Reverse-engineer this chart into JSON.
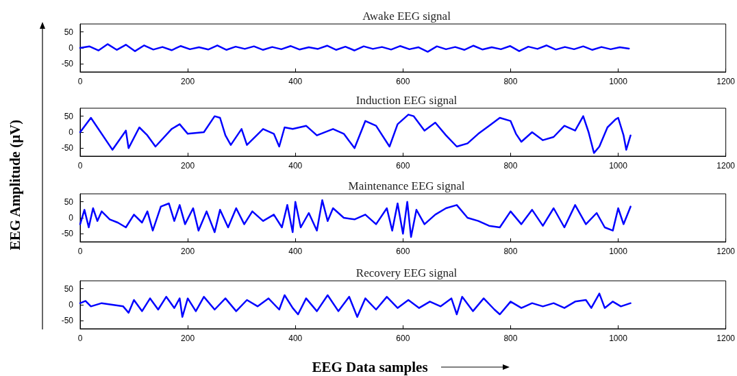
{
  "chart_data": [
    {
      "type": "line",
      "title": "Awake EEG signal",
      "ylabel": "EEG Amplitude (μV)",
      "xlim": [
        0,
        1200
      ],
      "xticks": [
        0,
        200,
        400,
        600,
        800,
        1000,
        1200
      ],
      "ylim": [
        -75,
        75
      ],
      "yticks": [
        -50,
        0,
        50
      ],
      "x": [
        0,
        17,
        34,
        51,
        68,
        85,
        102,
        119,
        136,
        153,
        170,
        187,
        204,
        221,
        238,
        255,
        272,
        289,
        306,
        323,
        340,
        357,
        374,
        391,
        408,
        425,
        442,
        459,
        476,
        493,
        510,
        527,
        544,
        561,
        578,
        595,
        612,
        629,
        646,
        663,
        680,
        697,
        714,
        731,
        748,
        765,
        782,
        799,
        816,
        833,
        850,
        867,
        884,
        901,
        918,
        935,
        952,
        969,
        986,
        1003,
        1020
      ],
      "series": [
        {
          "color": "#0000ff",
          "values": [
            0,
            5,
            -8,
            12,
            -6,
            10,
            -10,
            8,
            -5,
            3,
            -7,
            6,
            -4,
            2,
            -5,
            8,
            -6,
            4,
            -3,
            5,
            -6,
            3,
            -4,
            6,
            -5,
            2,
            -3,
            7,
            -6,
            4,
            -8,
            5,
            -3,
            3,
            -5,
            6,
            -4,
            2,
            -12,
            5,
            -4,
            3,
            -6,
            7,
            -5,
            2,
            -4,
            6,
            -10,
            4,
            -3,
            8,
            -5,
            3,
            -4,
            5,
            -6,
            3,
            -4,
            2,
            -2
          ]
        }
      ]
    },
    {
      "type": "line",
      "title": "Induction EEG signal",
      "xlim": [
        0,
        1200
      ],
      "xticks": [
        0,
        200,
        400,
        600,
        800,
        1000,
        1200
      ],
      "ylim": [
        -75,
        75
      ],
      "yticks": [
        -50,
        0,
        50
      ],
      "x": [
        0,
        20,
        60,
        85,
        90,
        110,
        125,
        140,
        170,
        185,
        200,
        230,
        250,
        260,
        270,
        280,
        300,
        310,
        340,
        360,
        370,
        380,
        395,
        420,
        440,
        470,
        490,
        510,
        530,
        550,
        575,
        590,
        610,
        620,
        640,
        660,
        680,
        700,
        720,
        740,
        760,
        780,
        800,
        810,
        820,
        840,
        860,
        880,
        900,
        920,
        935,
        945,
        955,
        965,
        980,
        995,
        1000,
        1010,
        1015,
        1023
      ],
      "series": [
        {
          "color": "#0000ff",
          "values": [
            0,
            45,
            -55,
            5,
            -50,
            15,
            -10,
            -45,
            10,
            25,
            -5,
            0,
            50,
            45,
            -10,
            -40,
            10,
            -40,
            10,
            -5,
            -45,
            15,
            10,
            20,
            -10,
            10,
            -5,
            -50,
            35,
            20,
            -45,
            25,
            55,
            50,
            5,
            30,
            -10,
            -45,
            -35,
            -5,
            20,
            45,
            35,
            -5,
            -30,
            0,
            -25,
            -15,
            20,
            5,
            50,
            0,
            -65,
            -45,
            15,
            40,
            45,
            -10,
            -55,
            -10
          ]
        }
      ]
    },
    {
      "type": "line",
      "title": "Maintenance EEG signal",
      "xlim": [
        0,
        1200
      ],
      "xticks": [
        0,
        200,
        400,
        600,
        800,
        1000,
        1200
      ],
      "ylim": [
        -75,
        75
      ],
      "yticks": [
        -50,
        0,
        50
      ],
      "x": [
        0,
        8,
        16,
        24,
        32,
        40,
        55,
        70,
        85,
        100,
        115,
        125,
        135,
        150,
        165,
        175,
        185,
        195,
        210,
        220,
        235,
        250,
        260,
        275,
        290,
        305,
        320,
        340,
        360,
        375,
        385,
        395,
        400,
        410,
        425,
        440,
        450,
        460,
        470,
        490,
        510,
        530,
        550,
        570,
        580,
        590,
        600,
        608,
        615,
        625,
        640,
        660,
        680,
        700,
        720,
        740,
        760,
        780,
        800,
        820,
        840,
        860,
        880,
        900,
        920,
        940,
        960,
        975,
        990,
        1000,
        1010,
        1023
      ],
      "series": [
        {
          "color": "#0000ff",
          "values": [
            -20,
            25,
            -30,
            30,
            -10,
            20,
            -5,
            -15,
            -30,
            10,
            -15,
            20,
            -40,
            35,
            45,
            -10,
            40,
            -20,
            30,
            -40,
            20,
            -45,
            25,
            -30,
            30,
            -20,
            20,
            -10,
            10,
            -30,
            40,
            -45,
            50,
            -30,
            15,
            -40,
            55,
            -10,
            30,
            0,
            -5,
            10,
            -20,
            30,
            -40,
            45,
            -50,
            50,
            -60,
            25,
            -20,
            10,
            30,
            40,
            0,
            -10,
            -25,
            -30,
            20,
            -20,
            25,
            -25,
            30,
            -30,
            40,
            -20,
            15,
            -30,
            -40,
            30,
            -20,
            35
          ]
        }
      ]
    },
    {
      "type": "line",
      "title": "Recovery EEG signal",
      "xlabel": "EEG Data samples",
      "xlim": [
        0,
        1200
      ],
      "xticks": [
        0,
        200,
        400,
        600,
        800,
        1000,
        1200
      ],
      "ylim": [
        -75,
        75
      ],
      "yticks": [
        -50,
        0,
        50
      ],
      "x": [
        0,
        10,
        20,
        40,
        60,
        80,
        90,
        100,
        115,
        130,
        145,
        160,
        175,
        185,
        190,
        200,
        215,
        230,
        250,
        270,
        290,
        310,
        330,
        350,
        370,
        380,
        395,
        405,
        420,
        440,
        460,
        480,
        500,
        515,
        530,
        550,
        570,
        590,
        610,
        630,
        650,
        670,
        690,
        700,
        710,
        730,
        750,
        770,
        780,
        800,
        820,
        840,
        860,
        880,
        900,
        920,
        940,
        950,
        965,
        975,
        990,
        1005,
        1023
      ],
      "series": [
        {
          "color": "#0000ff",
          "values": [
            5,
            12,
            -5,
            5,
            0,
            -5,
            -25,
            15,
            -20,
            20,
            -15,
            25,
            -10,
            20,
            -38,
            20,
            -20,
            25,
            -15,
            20,
            -20,
            15,
            -5,
            20,
            -15,
            30,
            -10,
            -30,
            20,
            -20,
            30,
            -20,
            25,
            -38,
            20,
            -15,
            25,
            -10,
            15,
            -10,
            10,
            -5,
            20,
            -30,
            25,
            -20,
            20,
            -15,
            -30,
            10,
            -10,
            5,
            -5,
            5,
            -10,
            10,
            15,
            -10,
            35,
            -10,
            10,
            -5,
            5
          ]
        }
      ]
    }
  ]
}
